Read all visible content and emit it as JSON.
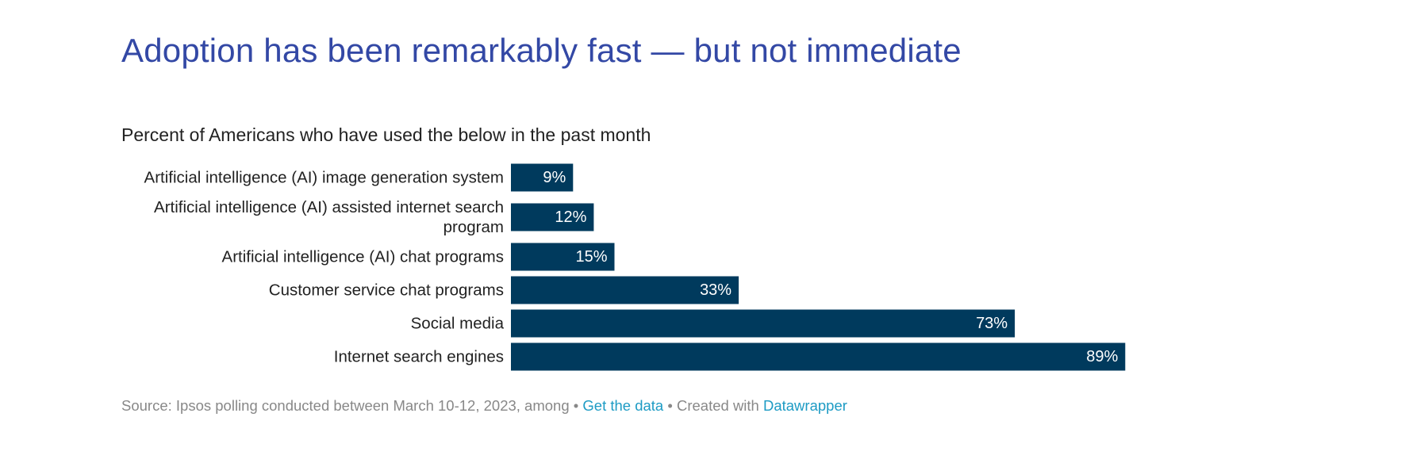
{
  "headline": "Adoption has been remarkably fast — but not immediate",
  "chart_data": {
    "type": "bar",
    "orientation": "horizontal",
    "title": "Percent of Americans who have used the below in the past month",
    "categories": [
      [
        "Artificial intelligence (AI) image generation system"
      ],
      [
        "Artificial intelligence (AI) assisted internet search",
        "program"
      ],
      [
        "Artificial intelligence (AI) chat programs"
      ],
      [
        "Customer service chat programs"
      ],
      [
        "Social media"
      ],
      [
        "Internet search engines"
      ]
    ],
    "values": [
      9,
      12,
      15,
      33,
      73,
      89
    ],
    "value_labels": [
      "9%",
      "12%",
      "15%",
      "33%",
      "73%",
      "89%"
    ],
    "xlim": [
      0,
      100
    ],
    "unit": "%",
    "bar_color": "#003a5d",
    "label_color": "#ffffff",
    "grid": false,
    "legend": "none"
  },
  "footer": {
    "source": "Source: Ipsos polling conducted between March 10-12, 2023, among",
    "separator": "•",
    "get_data_label": "Get the data",
    "created_with": "Created with",
    "datawrapper_label": "Datawrapper"
  },
  "colors": {
    "headline": "#3348a5",
    "link": "#1d9bc4",
    "muted": "#888888"
  }
}
